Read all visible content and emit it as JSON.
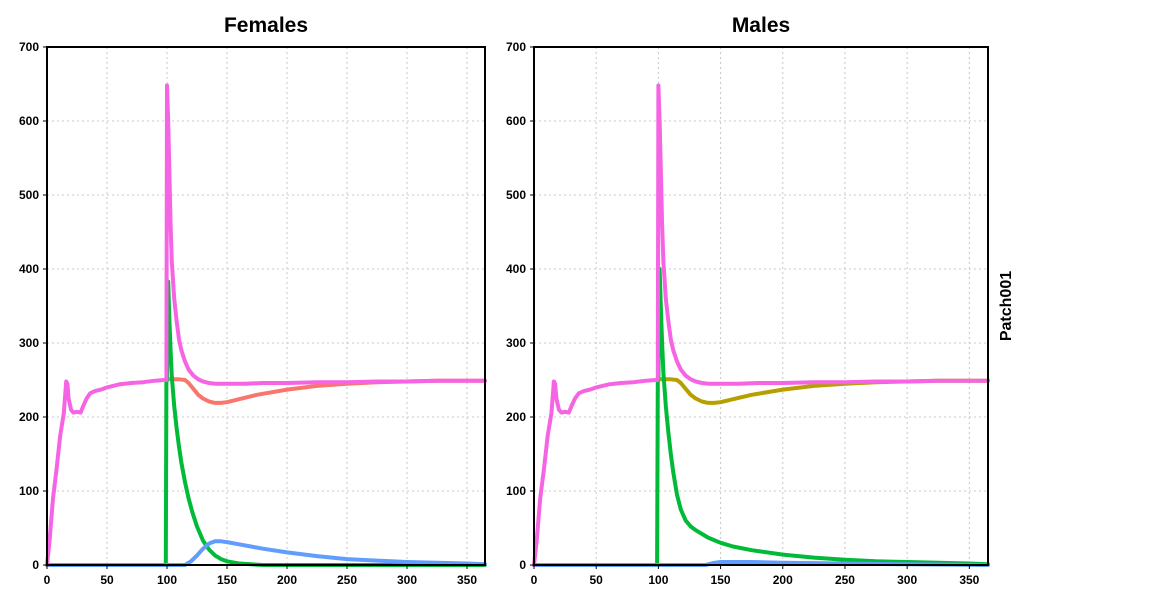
{
  "chart_data": [
    {
      "type": "line",
      "title": "Females",
      "xlim": [
        0,
        365
      ],
      "ylim": [
        0,
        700
      ],
      "xticks": [
        0,
        50,
        100,
        150,
        200,
        250,
        300,
        350
      ],
      "yticks": [
        0,
        100,
        200,
        300,
        400,
        500,
        600,
        700
      ],
      "grid": true,
      "series": [
        {
          "color": "#F8766D",
          "x": [
            100,
            101,
            110,
            115,
            118,
            122,
            126,
            130,
            135,
            140,
            145,
            150,
            160,
            175,
            200,
            225,
            250,
            275,
            300,
            325,
            350,
            365
          ],
          "y": [
            250,
            251,
            251,
            250,
            246,
            238,
            230,
            225,
            221,
            219,
            219,
            220,
            224,
            230,
            237,
            242,
            245,
            247,
            248,
            249,
            249,
            249
          ]
        },
        {
          "color": "#00BA38",
          "x": [
            0,
            99,
            99.5,
            100,
            101,
            102,
            103,
            104,
            106,
            108,
            110,
            112,
            115,
            118,
            121,
            125,
            130,
            135,
            140,
            145,
            150,
            160,
            170,
            180,
            365
          ],
          "y": [
            0,
            0,
            250,
            250,
            383,
            330,
            290,
            255,
            215,
            185,
            160,
            138,
            112,
            90,
            72,
            52,
            33,
            21,
            13,
            8,
            5,
            2,
            1,
            0,
            0
          ]
        },
        {
          "color": "#619CFF",
          "x": [
            0,
            115,
            120,
            125,
            130,
            135,
            140,
            145,
            150,
            160,
            170,
            180,
            200,
            225,
            250,
            275,
            300,
            325,
            350,
            365
          ],
          "y": [
            0,
            0,
            5,
            13,
            22,
            29,
            32,
            32,
            31,
            28,
            25,
            22,
            17,
            12,
            8,
            6,
            4,
            3,
            2,
            1
          ]
        },
        {
          "color": "#F564E3",
          "x": [
            0,
            2,
            5,
            8,
            11,
            14,
            16,
            17,
            18,
            20,
            22,
            25,
            28,
            30,
            33,
            36,
            40,
            45,
            50,
            60,
            70,
            80,
            90,
            98,
            99.5,
            100,
            101,
            102,
            103,
            104,
            106,
            108,
            110,
            112,
            115,
            118,
            122,
            126,
            130,
            135,
            140,
            150,
            165,
            180,
            200,
            225,
            250,
            275,
            300,
            325,
            350,
            365
          ],
          "y": [
            0,
            30,
            90,
            130,
            175,
            205,
            248,
            245,
            225,
            210,
            206,
            207,
            206,
            214,
            225,
            232,
            235,
            237,
            240,
            244,
            246,
            247,
            249,
            250,
            250,
            648,
            600,
            530,
            460,
            410,
            360,
            330,
            305,
            290,
            275,
            264,
            256,
            251,
            248,
            246,
            245,
            245,
            245,
            246,
            246,
            247,
            247,
            248,
            248,
            249,
            249,
            249
          ]
        }
      ]
    },
    {
      "type": "line",
      "title": "Males",
      "xlim": [
        0,
        365
      ],
      "ylim": [
        0,
        700
      ],
      "xticks": [
        0,
        50,
        100,
        150,
        200,
        250,
        300,
        350
      ],
      "yticks": [
        0,
        100,
        200,
        300,
        400,
        500,
        600,
        700
      ],
      "grid": true,
      "strip_label": "Patch001",
      "series": [
        {
          "color": "#B79F00",
          "x": [
            100,
            101,
            110,
            115,
            118,
            122,
            126,
            130,
            135,
            140,
            145,
            150,
            160,
            175,
            200,
            225,
            250,
            275,
            300,
            325,
            350,
            365
          ],
          "y": [
            250,
            251,
            251,
            250,
            246,
            238,
            230,
            225,
            221,
            219,
            219,
            220,
            224,
            230,
            237,
            242,
            245,
            247,
            248,
            249,
            249,
            249
          ]
        },
        {
          "color": "#00BA38",
          "x": [
            0,
            99,
            99.5,
            100,
            101,
            102,
            103,
            104,
            106,
            108,
            110,
            112,
            115,
            118,
            122,
            126,
            130,
            135,
            140,
            150,
            160,
            175,
            200,
            225,
            250,
            275,
            300,
            325,
            350,
            365
          ],
          "y": [
            0,
            0,
            250,
            250,
            400,
            345,
            300,
            260,
            215,
            180,
            150,
            125,
            95,
            75,
            60,
            52,
            47,
            42,
            37,
            30,
            25,
            20,
            14,
            10,
            7,
            5,
            4,
            3,
            2,
            1
          ]
        },
        {
          "color": "#619CFF",
          "x": [
            0,
            138,
            145,
            150,
            160,
            175,
            200,
            250,
            300,
            365
          ],
          "y": [
            0,
            0,
            3,
            4,
            4,
            4,
            3,
            2,
            1,
            0
          ]
        },
        {
          "color": "#F564E3",
          "x": [
            0,
            2,
            5,
            8,
            11,
            14,
            16,
            17,
            18,
            20,
            22,
            25,
            28,
            30,
            33,
            36,
            40,
            45,
            50,
            60,
            70,
            80,
            90,
            98,
            99.5,
            100,
            101,
            102,
            103,
            104,
            106,
            108,
            110,
            112,
            115,
            118,
            122,
            126,
            130,
            135,
            140,
            150,
            165,
            180,
            200,
            225,
            250,
            275,
            300,
            325,
            350,
            365
          ],
          "y": [
            0,
            30,
            90,
            130,
            175,
            205,
            248,
            245,
            225,
            210,
            206,
            207,
            206,
            214,
            225,
            232,
            235,
            237,
            240,
            244,
            246,
            247,
            249,
            250,
            250,
            648,
            600,
            530,
            460,
            410,
            360,
            330,
            305,
            290,
            275,
            264,
            256,
            251,
            248,
            246,
            245,
            245,
            245,
            246,
            246,
            247,
            247,
            248,
            248,
            249,
            249,
            249
          ]
        }
      ]
    }
  ]
}
